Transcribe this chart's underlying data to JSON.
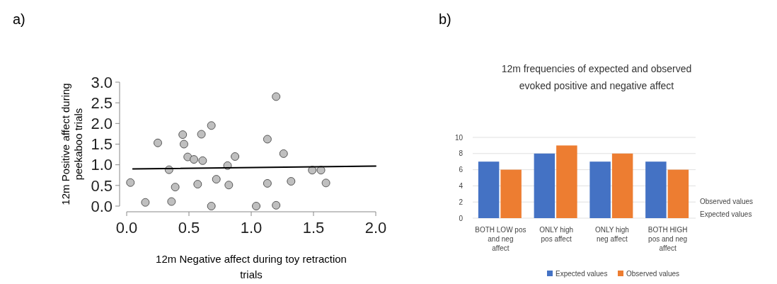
{
  "chart_data": [
    {
      "type": "scatter",
      "annotations": [
        "a)"
      ],
      "xlabel": "12m Negative affect during toy retraction trials",
      "ylabel": "12m Positive affect during peekaboo trials",
      "xlim": [
        0,
        2
      ],
      "xticks": [
        {
          "value": 0,
          "label": "0.0"
        },
        {
          "value": 0.5,
          "label": "0.5"
        },
        {
          "value": 1,
          "label": "1.0"
        },
        {
          "value": 1.5,
          "label": "1.5"
        },
        {
          "value": 2,
          "label": "2.0"
        }
      ],
      "ylim": [
        0,
        3
      ],
      "yticks": [
        {
          "value": 0,
          "label": "0.0"
        },
        {
          "value": 0.5,
          "label": "0.5"
        },
        {
          "value": 1,
          "label": "1.0"
        },
        {
          "value": 1.5,
          "label": "1.5"
        },
        {
          "value": 2,
          "label": "2.0"
        },
        {
          "value": 2.5,
          "label": "2.5"
        },
        {
          "value": 3,
          "label": "3.0"
        }
      ],
      "grid": false,
      "series": [
        {
          "type": "scatter",
          "marker": "circle",
          "color": "#bfbfbf",
          "x": [
            0.03,
            0.15,
            0.25,
            0.34,
            0.36,
            0.39,
            0.45,
            0.46,
            0.49,
            0.54,
            0.57,
            0.6,
            0.61,
            0.68,
            0.68,
            0.72,
            0.81,
            0.82,
            0.87,
            1.04,
            1.13,
            1.13,
            1.2,
            1.2,
            1.26,
            1.32,
            1.49,
            1.56,
            1.6
          ],
          "values": [
            0.57,
            0.09,
            1.53,
            0.88,
            0.11,
            0.46,
            1.73,
            1.5,
            1.19,
            1.13,
            0.53,
            1.74,
            1.1,
            0,
            1.95,
            0.65,
            0.98,
            0.51,
            1.2,
            0,
            0.55,
            1.62,
            2.65,
            0.02,
            1.27,
            0.6,
            0.87,
            0.87,
            0.56
          ]
        },
        {
          "type": "line",
          "color": "#000000",
          "x": [
            0.05,
            2
          ],
          "values": [
            0.9,
            0.97
          ]
        }
      ]
    },
    {
      "type": "bar",
      "annotations": [
        "b)"
      ],
      "title": "12m frequencies of expected and observed evoked positive and negative affect",
      "categories": [
        "BOTH LOW pos and neg affect",
        "ONLY high pos affect",
        "ONLY high neg affect",
        "BOTH HIGH pos and neg affect"
      ],
      "ylim": [
        0,
        10
      ],
      "yticks": [
        0,
        2,
        4,
        6,
        8,
        10
      ],
      "grid": "y",
      "legend": "bottom",
      "series": [
        {
          "name": "Expected values",
          "color": "#4472c4",
          "values": [
            7,
            8,
            7,
            7
          ]
        },
        {
          "name": "Observed values",
          "color": "#ed7d31",
          "values": [
            6,
            9,
            8,
            6
          ]
        }
      ]
    }
  ]
}
